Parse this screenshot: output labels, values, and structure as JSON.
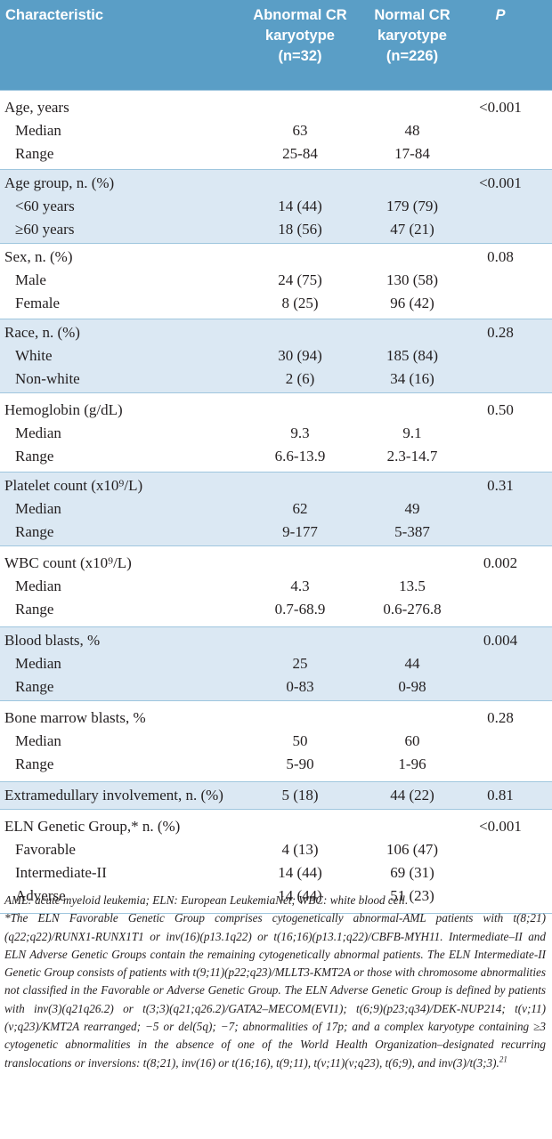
{
  "header": {
    "col1": "Characteristic",
    "col2_l1": "Abnormal CR",
    "col2_l2": "karyotype",
    "col2_l3": "(n=32)",
    "col3_l1": "Normal CR",
    "col3_l2": "karyotype",
    "col3_l3": "(n=226)",
    "col4": "P"
  },
  "groups": [
    {
      "label": "Age, years",
      "p": "<0.001",
      "rows": [
        {
          "label": "Median",
          "abn": "63",
          "norm": "48"
        },
        {
          "label": "Range",
          "abn": "25-84",
          "norm": "17-84"
        }
      ]
    },
    {
      "label": "Age group, n. (%)",
      "p": "<0.001",
      "rows": [
        {
          "label": "<60 years",
          "abn": "14 (44)",
          "norm": "179 (79)"
        },
        {
          "label": "≥60 years",
          "abn": "18 (56)",
          "norm": "47 (21)"
        }
      ]
    },
    {
      "label": "Sex, n. (%)",
      "p": "0.08",
      "rows": [
        {
          "label": "Male",
          "abn": "24 (75)",
          "norm": "130 (58)"
        },
        {
          "label": "Female",
          "abn": "8 (25)",
          "norm": "96 (42)"
        }
      ]
    },
    {
      "label": "Race, n. (%)",
      "p": "0.28",
      "rows": [
        {
          "label": "White",
          "abn": "30 (94)",
          "norm": "185 (84)"
        },
        {
          "label": "Non-white",
          "abn": "2 (6)",
          "norm": "34 (16)"
        }
      ]
    },
    {
      "label": "Hemoglobin (g/dL)",
      "p": "0.50",
      "rows": [
        {
          "label": "Median",
          "abn": "9.3",
          "norm": "9.1"
        },
        {
          "label": "Range",
          "abn": "6.6-13.9",
          "norm": "2.3-14.7"
        }
      ]
    },
    {
      "label": "Platelet count (x10⁹/L)",
      "p": "0.31",
      "rows": [
        {
          "label": "Median",
          "abn": "62",
          "norm": "49"
        },
        {
          "label": "Range",
          "abn": "9-177",
          "norm": "5-387"
        }
      ]
    },
    {
      "label": "WBC count (x10⁹/L)",
      "p": "0.002",
      "rows": [
        {
          "label": "Median",
          "abn": "4.3",
          "norm": "13.5"
        },
        {
          "label": "Range",
          "abn": "0.7-68.9",
          "norm": "0.6-276.8"
        }
      ]
    },
    {
      "label": "Blood blasts, %",
      "p": "0.004",
      "rows": [
        {
          "label": "Median",
          "abn": "25",
          "norm": "44"
        },
        {
          "label": "Range",
          "abn": "0-83",
          "norm": "0-98"
        }
      ]
    },
    {
      "label": "Bone marrow blasts, %",
      "p": "0.28",
      "rows": [
        {
          "label": "Median",
          "abn": "50",
          "norm": "60"
        },
        {
          "label": "Range",
          "abn": "5-90",
          "norm": "1-96"
        }
      ]
    },
    {
      "label": "Extramedullary involvement, n. (%)",
      "abn": "5 (18)",
      "norm": "44 (22)",
      "p": "0.81",
      "rows": []
    },
    {
      "label": "ELN Genetic Group,* n. (%)",
      "p": "<0.001",
      "rows": [
        {
          "label": "Favorable",
          "abn": "4 (13)",
          "norm": "106 (47)"
        },
        {
          "label": "Intermediate-II",
          "abn": "14 (44)",
          "norm": "69 (31)"
        },
        {
          "label": "Adverse",
          "abn": "14 (44)",
          "norm": "51 (23)"
        }
      ]
    }
  ],
  "footnote": {
    "abbrev": "AML: acute myeloid leukemia; ELN: European LeukemiaNet; WBC: white blood cell.",
    "text": "*The ELN Favorable Genetic Group comprises cytogenetically abnormal-AML patients with t(8;21)(q22;q22)/RUNX1-RUNX1T1 or inv(16)(p13.1q22) or t(16;16)(p13.1;q22)/CBFB-MYH11. Intermediate–II and ELN Adverse Genetic Groups contain the remaining cytogenetically abnormal patients. The ELN Intermediate-II Genetic Group consists of patients with t(9;11)(p22;q23)/MLLT3-KMT2A or those with chromosome abnormalities not classified in the Favorable or Adverse Genetic Group. The ELN Adverse Genetic Group is defined by patients with inv(3)(q21q26.2) or t(3;3)(q21;q26.2)/GATA2–MECOM(EVI1); t(6;9)(p23;q34)/DEK-NUP214; t(v;11)(v;q23)/KMT2A rearranged; −5 or del(5q); −7; abnormalities of 17p; and a complex karyotype containing ≥3 cytogenetic abnormalities in the absence of one of the World Health Organization–designated recurring translocations or inversions: t(8;21), inv(16) or t(16;16), t(9;11), t(v;11)(v;q23), t(6;9), and inv(3)/t(3;3).",
    "ref": "21"
  }
}
